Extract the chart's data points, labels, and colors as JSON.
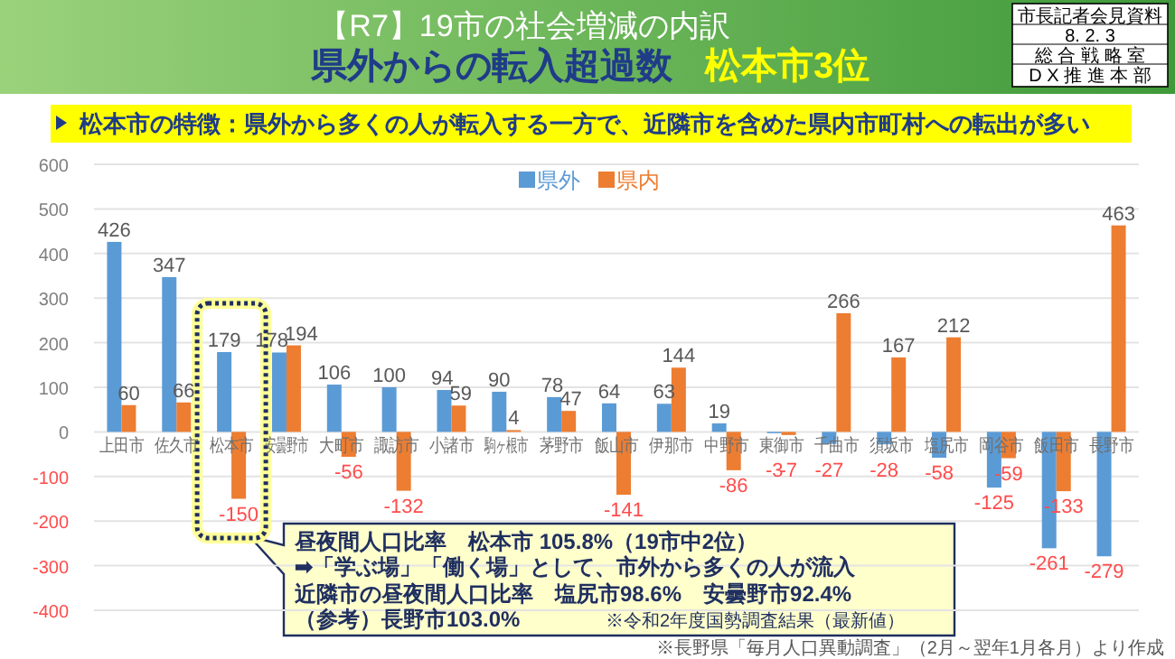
{
  "chart_data": {
    "type": "bar",
    "title": "【R7】19市の社会増減の内訳",
    "subtitle": "県外からの転入超過数",
    "categories": [
      "上田市",
      "佐久市",
      "松本市",
      "安曇野市",
      "大町市",
      "諏訪市",
      "小諸市",
      "駒ヶ根市",
      "茅野市",
      "飯山市",
      "伊那市",
      "中野市",
      "東御市",
      "千曲市",
      "須坂市",
      "塩尻市",
      "岡谷市",
      "飯田市",
      "長野市"
    ],
    "series": [
      {
        "name": "県外",
        "color": "#5b9bd5",
        "values": [
          426,
          347,
          179,
          178,
          106,
          100,
          94,
          90,
          78,
          64,
          63,
          19,
          -3,
          -27,
          -28,
          -58,
          -125,
          -261,
          -279
        ]
      },
      {
        "name": "県内",
        "color": "#ed7d31",
        "values": [
          60,
          66,
          -150,
          194,
          -56,
          -132,
          59,
          4,
          47,
          -141,
          144,
          -86,
          -7,
          266,
          167,
          212,
          -59,
          -133,
          463
        ]
      }
    ],
    "ylim": [
      -400,
      600
    ],
    "yticks": [
      -400,
      -300,
      -200,
      -100,
      0,
      100,
      200,
      300,
      400,
      500,
      600
    ],
    "grid": "y",
    "legend": "top",
    "data_labels": true,
    "annotations": [
      "松本市3位",
      "市長記者会見資料",
      "8. 2. 3",
      "総 合 戦 略 室",
      "D X 推 進 本 部",
      "松本市の特徴：県外から多くの人が転入する一方で、近隣市を含めた県内市町村への転出が多い",
      "昼夜間人口比率　松本市 105.8%（19市中2位）",
      "➡「学ぶ場」「働く場」として、市外から多くの人が流入",
      "近隣市の昼夜間人口比率　塩尻市98.6%　安曇野市92.4%",
      "（参考）長野市103.0%",
      "※令和2年度国勢調査結果（最新値）",
      "※長野県「毎月人口異動調査」（2月～翌年1月各月）より作成"
    ]
  }
}
